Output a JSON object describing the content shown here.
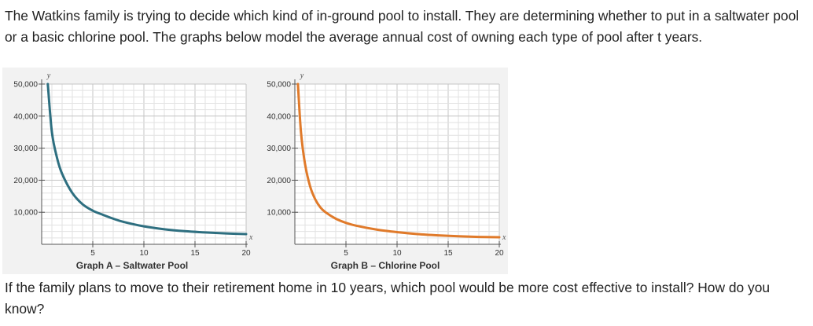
{
  "intro_text": "The Watkins family is trying to decide which kind of in-ground pool to install. They are determining whether to put in a saltwater pool or a basic chlorine pool. The graphs below model the average annual cost of owning each type of pool after t years.",
  "question_text": "If the family plans to move to their retirement home in 10 years, which pool would be more cost effective to install? How do you know?",
  "chart_data": [
    {
      "type": "line",
      "title": "Graph A – Saltwater Pool",
      "xlabel": "x",
      "ylabel": "y",
      "xlim": [
        0,
        20
      ],
      "ylim": [
        0,
        50000
      ],
      "x_ticks": [
        5,
        10,
        15,
        20
      ],
      "y_ticks": [
        10000,
        20000,
        30000,
        40000,
        50000
      ],
      "x_tick_labels": [
        "5",
        "10",
        "15",
        "20"
      ],
      "y_tick_labels": [
        "10,000",
        "20,000",
        "30,000",
        "40,000",
        "50,000"
      ],
      "grid": true,
      "color": "#2e6f80",
      "series": [
        {
          "x": [
            0.6,
            1,
            1.5,
            2,
            3,
            4,
            5,
            6,
            7,
            8,
            10,
            12,
            14,
            16,
            18,
            20
          ],
          "y": [
            50000,
            35000,
            27000,
            22000,
            16000,
            12500,
            10500,
            9200,
            8000,
            7000,
            5600,
            4700,
            4100,
            3700,
            3400,
            3200
          ]
        }
      ]
    },
    {
      "type": "line",
      "title": "Graph B – Chlorine Pool",
      "xlabel": "x",
      "ylabel": "y",
      "xlim": [
        0,
        20
      ],
      "ylim": [
        0,
        50000
      ],
      "x_ticks": [
        5,
        10,
        15,
        20
      ],
      "y_ticks": [
        10000,
        20000,
        30000,
        40000,
        50000
      ],
      "x_tick_labels": [
        "5",
        "10",
        "15",
        "20"
      ],
      "y_tick_labels": [
        "10,000",
        "20,000",
        "30,000",
        "40,000",
        "50,000"
      ],
      "grid": true,
      "color": "#e07a2a",
      "series": [
        {
          "x": [
            0.3,
            0.6,
            1,
            1.5,
            2,
            2.5,
            3,
            4,
            5,
            6,
            8,
            10,
            12,
            14,
            16,
            18,
            20
          ],
          "y": [
            50000,
            35000,
            25000,
            18000,
            14000,
            11500,
            10000,
            8000,
            6700,
            5800,
            4600,
            3800,
            3200,
            2800,
            2500,
            2300,
            2200
          ]
        }
      ]
    }
  ]
}
